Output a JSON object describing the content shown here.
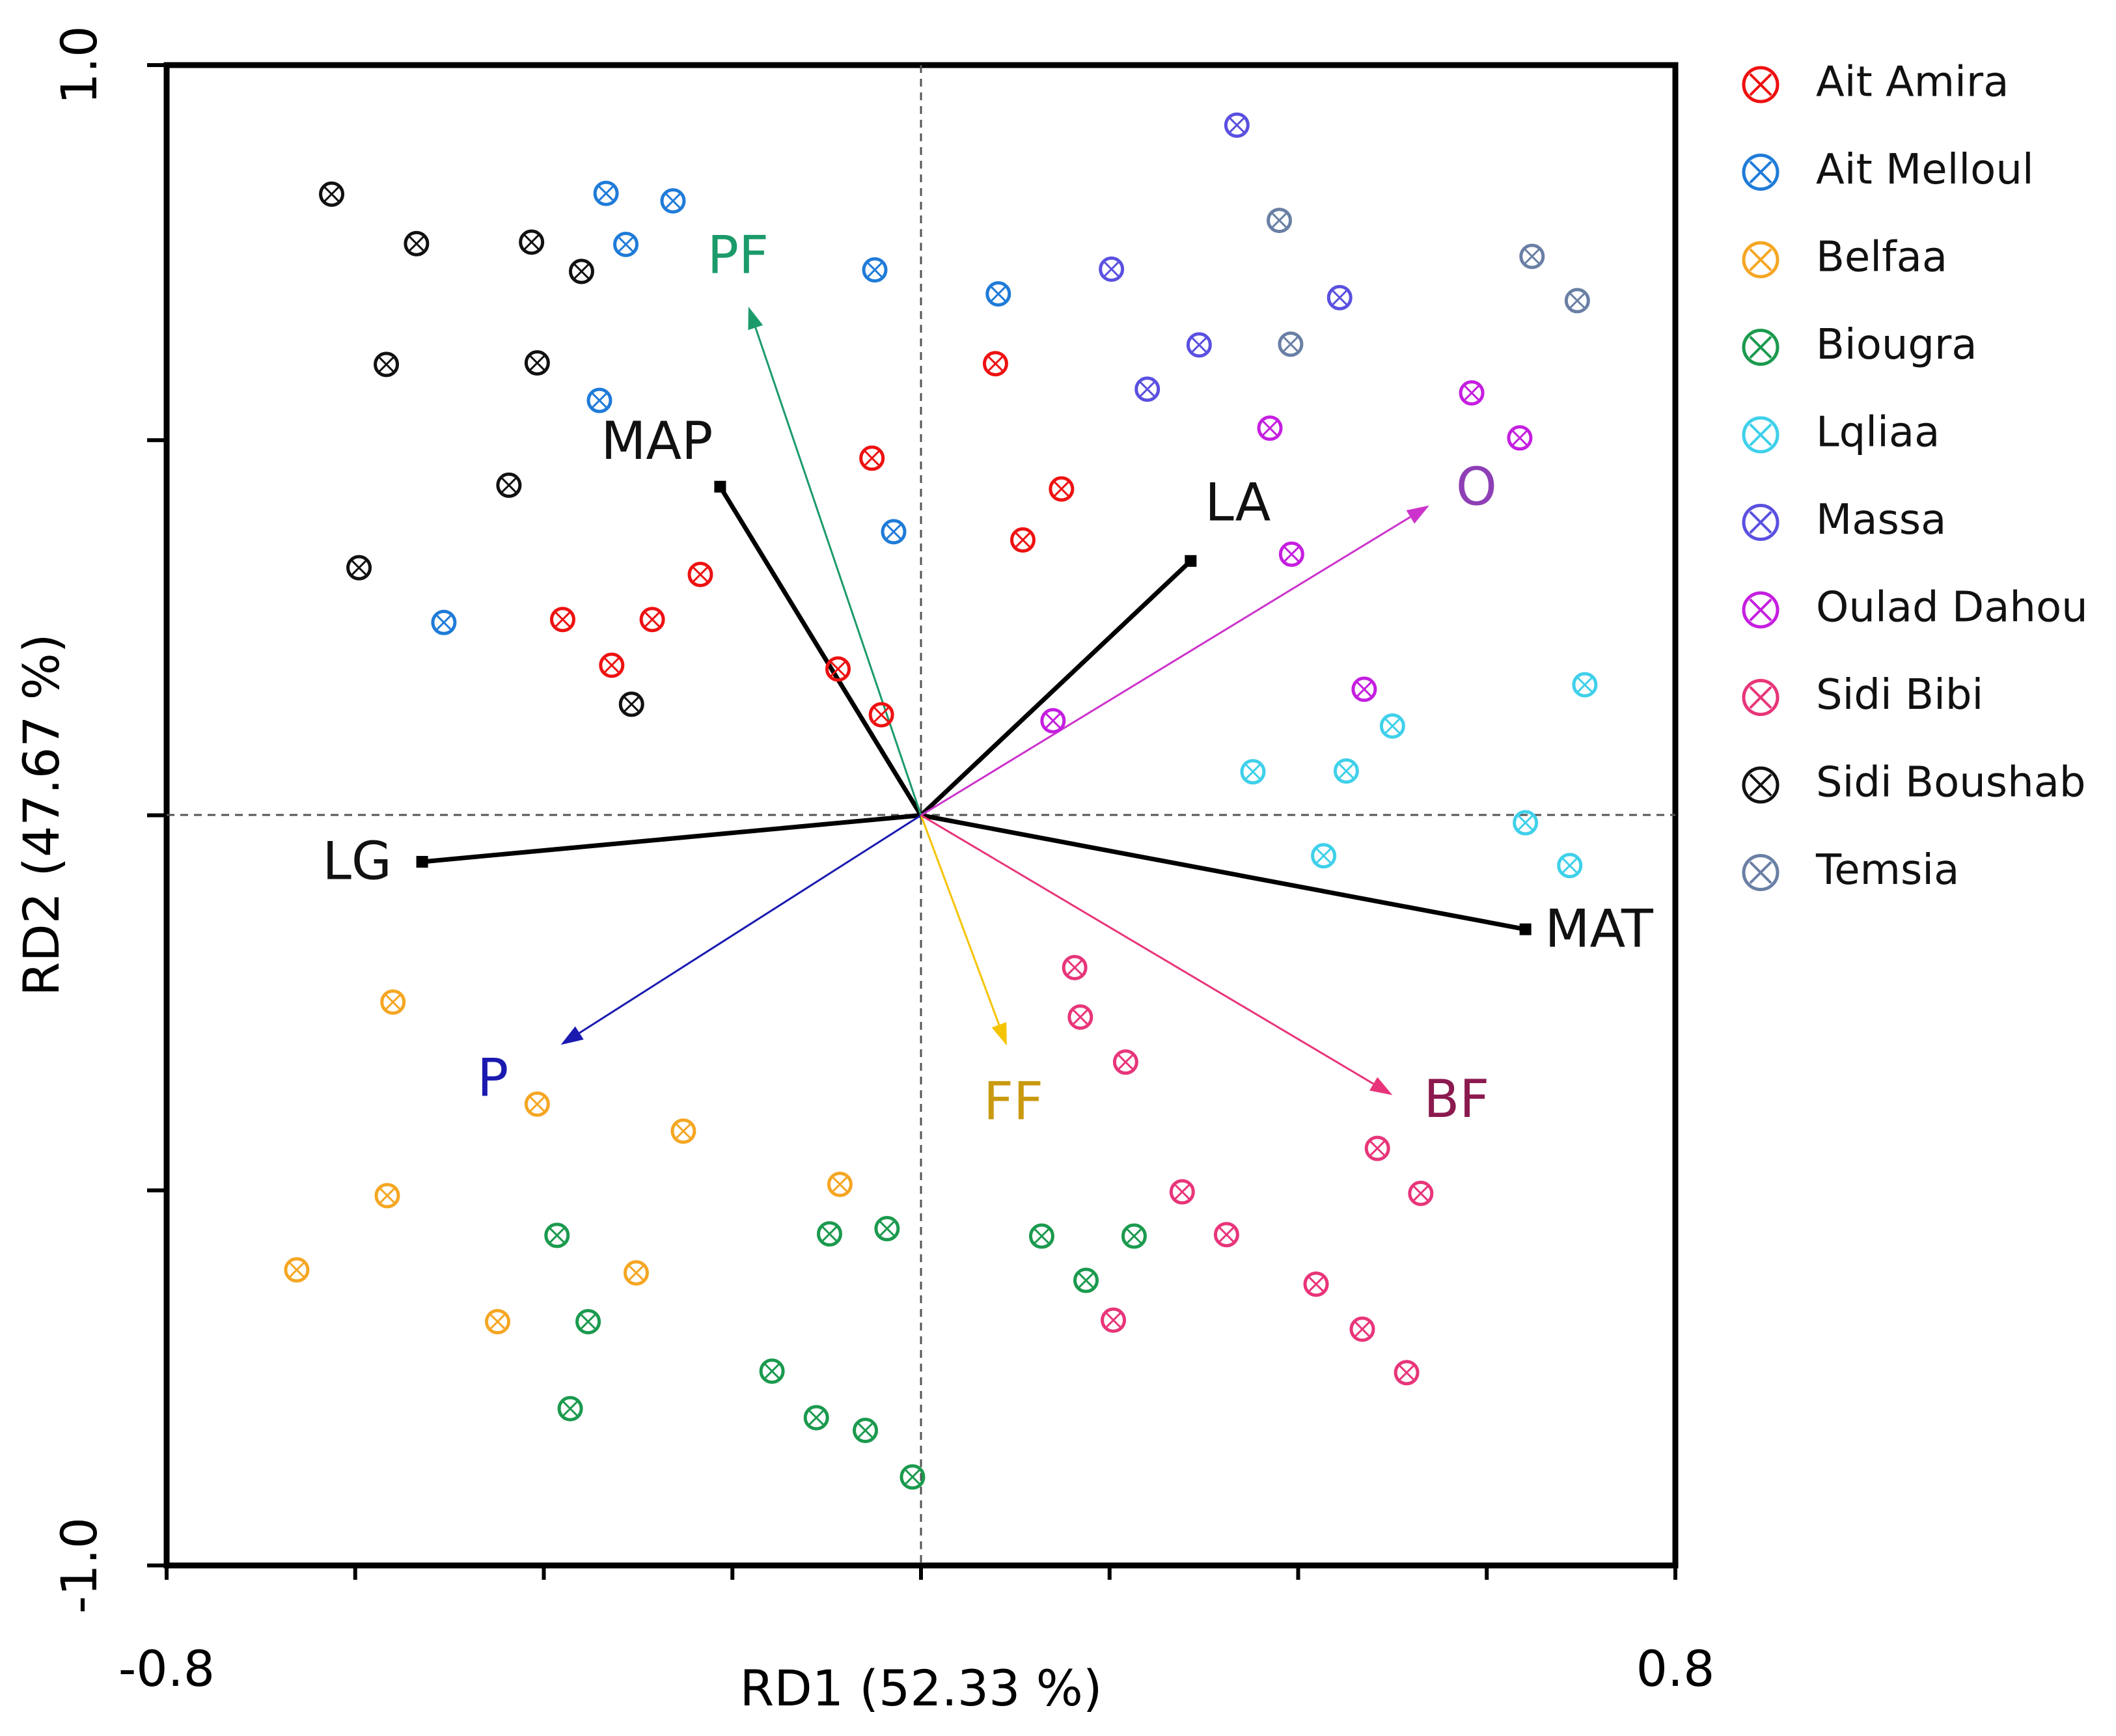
{
  "chart_data": {
    "type": "scatter",
    "subtype": "rda-biplot",
    "title": "",
    "xlabel": "RD1 (52.33 %)",
    "ylabel": "RD2 (47.67 %)",
    "xlim": [
      -0.8,
      0.8
    ],
    "ylim": [
      -1.0,
      1.0
    ],
    "x_tick_labels": [
      "-0.8",
      "0.8"
    ],
    "y_tick_labels": [
      "1.0",
      "-1.0"
    ],
    "grid": false,
    "origin_lines": true,
    "legend_position": "right",
    "series": [
      {
        "name": "Ait Amira",
        "color": "#ee1111",
        "marker": "circle-x",
        "points": [
          [
            0.079,
            0.602
          ],
          [
            0.149,
            0.435
          ],
          [
            0.108,
            0.367
          ],
          [
            -0.052,
            0.476
          ],
          [
            -0.234,
            0.321
          ],
          [
            -0.285,
            0.261
          ],
          [
            -0.328,
            0.2
          ],
          [
            -0.38,
            0.261
          ],
          [
            -0.088,
            0.195
          ],
          [
            -0.042,
            0.134
          ]
        ]
      },
      {
        "name": "Ait Melloul",
        "color": "#1f7bd8",
        "marker": "circle-x",
        "points": [
          [
            -0.334,
            0.829
          ],
          [
            -0.263,
            0.819
          ],
          [
            -0.313,
            0.761
          ],
          [
            -0.049,
            0.727
          ],
          [
            0.082,
            0.695
          ],
          [
            -0.341,
            0.553
          ],
          [
            -0.029,
            0.378
          ],
          [
            -0.506,
            0.257
          ]
        ]
      },
      {
        "name": "Belfaa",
        "color": "#f5a623",
        "marker": "circle-x",
        "points": [
          [
            -0.56,
            -0.249
          ],
          [
            -0.407,
            -0.385
          ],
          [
            -0.252,
            -0.421
          ],
          [
            -0.086,
            -0.492
          ],
          [
            -0.566,
            -0.507
          ],
          [
            -0.662,
            -0.606
          ],
          [
            -0.302,
            -0.61
          ],
          [
            -0.449,
            -0.675
          ]
        ]
      },
      {
        "name": "Biougra",
        "color": "#1b9a4e",
        "marker": "circle-x",
        "points": [
          [
            -0.036,
            -0.551
          ],
          [
            -0.097,
            -0.558
          ],
          [
            -0.386,
            -0.56
          ],
          [
            -0.353,
            -0.675
          ],
          [
            -0.158,
            -0.741
          ],
          [
            -0.111,
            -0.803
          ],
          [
            -0.059,
            -0.82
          ],
          [
            -0.009,
            -0.882
          ],
          [
            -0.372,
            -0.791
          ],
          [
            0.128,
            -0.561
          ],
          [
            0.226,
            -0.561
          ],
          [
            0.175,
            -0.62
          ]
        ]
      },
      {
        "name": "Lqliaa",
        "color": "#3fd0ea",
        "marker": "circle-x",
        "points": [
          [
            0.704,
            0.174
          ],
          [
            0.5,
            0.119
          ],
          [
            0.451,
            0.059
          ],
          [
            0.352,
            0.058
          ],
          [
            0.641,
            -0.01
          ],
          [
            0.427,
            -0.054
          ],
          [
            0.688,
            -0.067
          ]
        ]
      },
      {
        "name": "Massa",
        "color": "#5a50e0",
        "marker": "circle-x",
        "points": [
          [
            0.335,
            0.92
          ],
          [
            0.202,
            0.728
          ],
          [
            0.444,
            0.69
          ],
          [
            0.295,
            0.627
          ],
          [
            0.24,
            0.568
          ]
        ]
      },
      {
        "name": "Oulad Dahou",
        "color": "#c51ee0",
        "marker": "circle-x",
        "points": [
          [
            0.584,
            0.563
          ],
          [
            0.635,
            0.503
          ],
          [
            0.37,
            0.516
          ],
          [
            0.393,
            0.348
          ],
          [
            0.47,
            0.168
          ],
          [
            0.14,
            0.126
          ]
        ]
      },
      {
        "name": "Sidi Bibi",
        "color": "#e8357a",
        "marker": "circle-x",
        "points": [
          [
            0.163,
            -0.203
          ],
          [
            0.169,
            -0.269
          ],
          [
            0.217,
            -0.329
          ],
          [
            0.484,
            -0.444
          ],
          [
            0.53,
            -0.504
          ],
          [
            0.277,
            -0.502
          ],
          [
            0.324,
            -0.559
          ],
          [
            0.419,
            -0.625
          ],
          [
            0.468,
            -0.685
          ],
          [
            0.515,
            -0.743
          ],
          [
            0.204,
            -0.673
          ]
        ]
      },
      {
        "name": "Sidi Boushab",
        "color": "#111111",
        "marker": "circle-x",
        "points": [
          [
            -0.625,
            0.828
          ],
          [
            -0.535,
            0.762
          ],
          [
            -0.413,
            0.764
          ],
          [
            -0.36,
            0.725
          ],
          [
            -0.567,
            0.601
          ],
          [
            -0.407,
            0.603
          ],
          [
            -0.437,
            0.44
          ],
          [
            -0.596,
            0.33
          ],
          [
            -0.307,
            0.148
          ]
        ]
      },
      {
        "name": "Temsia",
        "color": "#6a7fa4",
        "marker": "circle-x",
        "points": [
          [
            0.38,
            0.793
          ],
          [
            0.648,
            0.745
          ],
          [
            0.696,
            0.686
          ],
          [
            0.392,
            0.628
          ]
        ]
      }
    ],
    "vectors": [
      {
        "name": "MAP",
        "x": -0.213,
        "y": 0.438,
        "color": "#000000",
        "style": "thick-line",
        "label_x": -0.28,
        "label_y": 0.494
      },
      {
        "name": "LA",
        "x": 0.286,
        "y": 0.339,
        "color": "#000000",
        "style": "thick-line",
        "label_x": 0.336,
        "label_y": 0.412
      },
      {
        "name": "LG",
        "x": -0.529,
        "y": -0.062,
        "color": "#000000",
        "style": "thick-line",
        "label_x": -0.598,
        "label_y": -0.066
      },
      {
        "name": "MAT",
        "x": 0.641,
        "y": -0.152,
        "color": "#000000",
        "style": "thick-line",
        "label_x": 0.719,
        "label_y": -0.156
      },
      {
        "name": "PF",
        "x": -0.183,
        "y": 0.678,
        "color": "#1b9a6a",
        "style": "arrow",
        "label_x": -0.194,
        "label_y": 0.742
      },
      {
        "name": "O",
        "x": 0.539,
        "y": 0.413,
        "color": "#cc33cc",
        "style": "arrow",
        "label_x": 0.589,
        "label_y": 0.433
      },
      {
        "name": "P",
        "x": -0.382,
        "y": -0.306,
        "color": "#1a1ab0",
        "style": "arrow",
        "label_x": -0.454,
        "label_y": -0.355
      },
      {
        "name": "FF",
        "x": 0.091,
        "y": -0.307,
        "color": "#f5c400",
        "style": "arrow",
        "label_x": 0.098,
        "label_y": -0.386
      },
      {
        "name": "BF",
        "x": 0.5,
        "y": -0.373,
        "color": "#e8357a",
        "style": "arrow",
        "label_x": 0.568,
        "label_y": -0.383
      }
    ],
    "vector_label_colors": {
      "MAP": "#111111",
      "LA": "#111111",
      "LG": "#111111",
      "MAT": "#111111",
      "PF": "#1b9a6a",
      "O": "#8e3fb5",
      "P": "#1a1ab0",
      "FF": "#c99a10",
      "BF": "#8b1a4f"
    }
  }
}
